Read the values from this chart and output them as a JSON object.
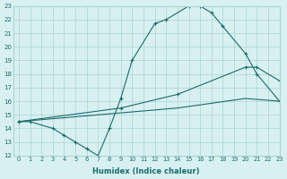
{
  "line1_x": [
    0,
    1,
    3,
    4,
    5,
    6,
    7,
    8,
    9,
    10,
    12,
    13,
    15,
    16,
    17,
    18,
    20,
    21,
    23
  ],
  "line1_y": [
    14.5,
    14.5,
    14.0,
    13.5,
    13.0,
    12.5,
    12.0,
    14.0,
    16.2,
    19.0,
    21.7,
    22.0,
    23.0,
    23.0,
    22.5,
    21.5,
    19.5,
    18.0,
    16.0
  ],
  "line2_x": [
    0,
    9,
    14,
    20,
    21,
    23
  ],
  "line2_y": [
    14.5,
    15.5,
    16.5,
    18.5,
    18.5,
    17.5
  ],
  "line3_x": [
    0,
    14,
    20,
    23
  ],
  "line3_y": [
    14.5,
    15.5,
    16.2,
    16.0
  ],
  "line_color": "#1a6b6b",
  "bg_color": "#d8f0f0",
  "grid_color": "#aad4d4",
  "xlabel": "Humidex (Indice chaleur)",
  "xlim": [
    -0.5,
    23
  ],
  "ylim": [
    12,
    23
  ],
  "xticks": [
    0,
    1,
    2,
    3,
    4,
    5,
    6,
    7,
    8,
    9,
    10,
    11,
    12,
    13,
    14,
    15,
    16,
    17,
    18,
    19,
    20,
    21,
    22,
    23
  ],
  "yticks": [
    12,
    13,
    14,
    15,
    16,
    17,
    18,
    19,
    20,
    21,
    22,
    23
  ]
}
